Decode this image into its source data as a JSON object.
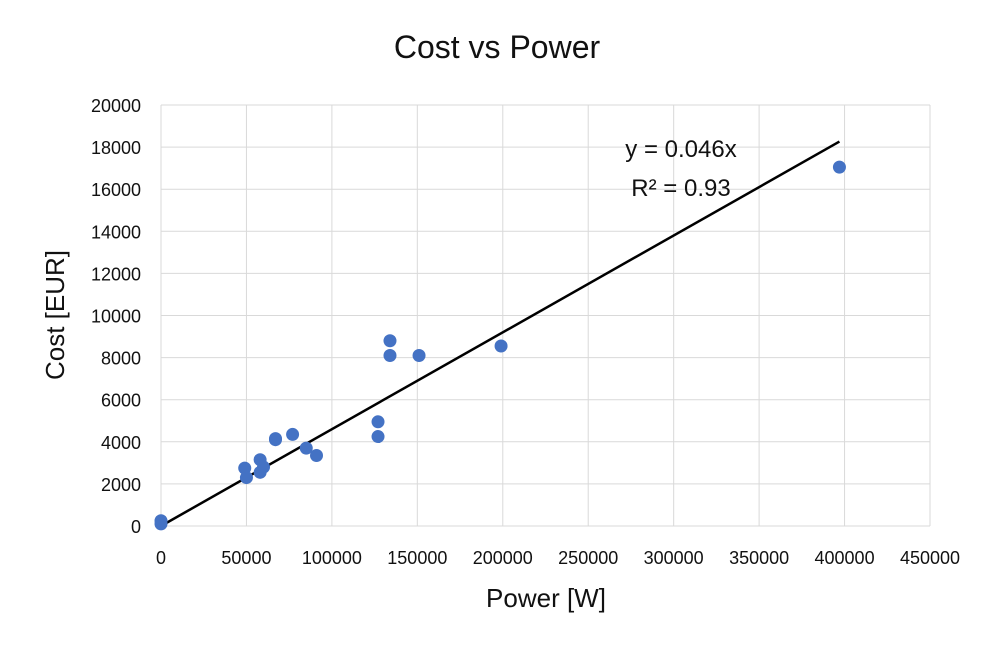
{
  "chart_data": {
    "type": "scatter",
    "title": "Cost vs Power",
    "xlabel": "Power [W]",
    "ylabel": "Cost [EUR]",
    "xlim": [
      0,
      450000
    ],
    "ylim": [
      0,
      20000
    ],
    "x_ticks": [
      "0",
      "50000",
      "100000",
      "150000",
      "200000",
      "250000",
      "300000",
      "350000",
      "400000",
      "450000"
    ],
    "y_ticks": [
      "0",
      "2000",
      "4000",
      "6000",
      "8000",
      "10000",
      "12000",
      "14000",
      "16000",
      "18000",
      "20000"
    ],
    "grid": true,
    "legend": "none",
    "marker_color": "#4472c4",
    "trendline_color": "#000000",
    "series": [
      {
        "points": [
          {
            "x": 0,
            "y": 250
          },
          {
            "x": 0,
            "y": 100
          },
          {
            "x": 49000,
            "y": 2750
          },
          {
            "x": 50000,
            "y": 2300
          },
          {
            "x": 58000,
            "y": 3150
          },
          {
            "x": 58000,
            "y": 2550
          },
          {
            "x": 60000,
            "y": 2800
          },
          {
            "x": 67000,
            "y": 4150
          },
          {
            "x": 67000,
            "y": 4100
          },
          {
            "x": 77000,
            "y": 4350
          },
          {
            "x": 85000,
            "y": 3700
          },
          {
            "x": 91000,
            "y": 3350
          },
          {
            "x": 127000,
            "y": 4950
          },
          {
            "x": 127000,
            "y": 4250
          },
          {
            "x": 134000,
            "y": 8800
          },
          {
            "x": 134000,
            "y": 8100
          },
          {
            "x": 151000,
            "y": 8100
          },
          {
            "x": 199000,
            "y": 8550
          },
          {
            "x": 397000,
            "y": 17050
          }
        ]
      }
    ],
    "trendline": {
      "slope": 0.046,
      "x_range": [
        0,
        397000
      ],
      "equation": "y = 0.046x",
      "r_squared": "R² = 0.93"
    }
  }
}
